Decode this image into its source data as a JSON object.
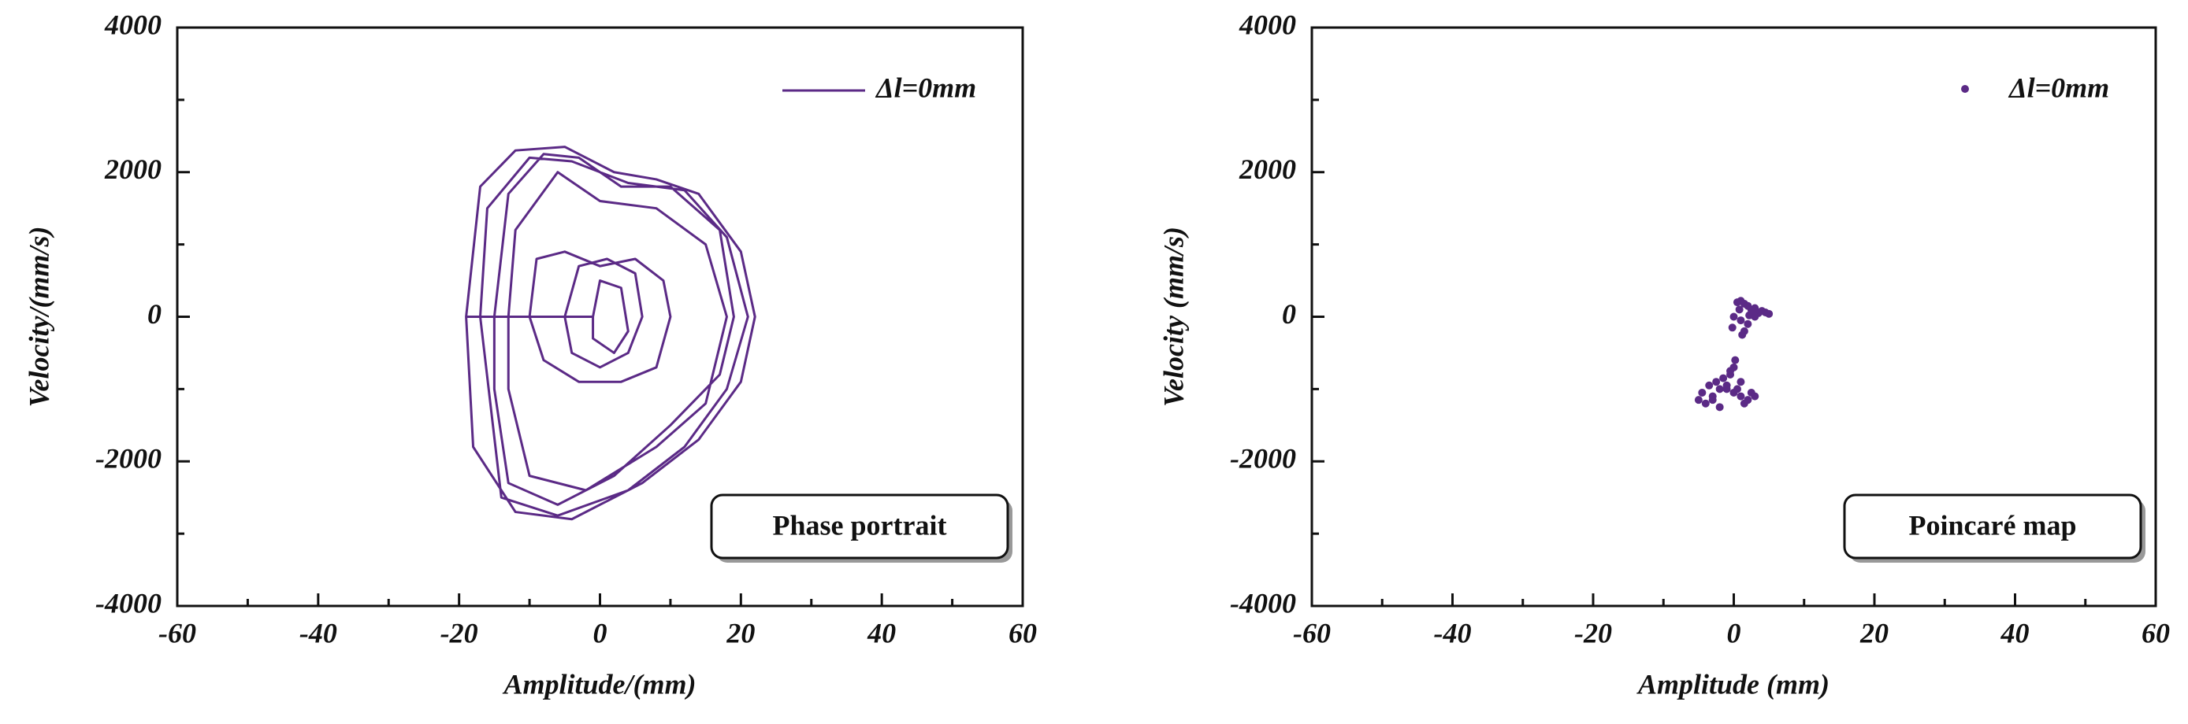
{
  "chart_data": [
    {
      "type": "line",
      "xlabel": "Amplitude/(mm)",
      "ylabel": "Velocity/(mm/s)",
      "annotation": "Phase portrait",
      "xlim": [
        -60,
        60
      ],
      "xticks": [
        -60,
        -40,
        -20,
        0,
        20,
        40,
        60
      ],
      "ylim": [
        -4000,
        4000
      ],
      "yticks": [
        -4000,
        -2000,
        0,
        2000,
        4000
      ],
      "legend": "upper right",
      "series": [
        {
          "name": "Δl=0mm",
          "color": "#5b2a86",
          "x": [
            -19,
            -17,
            -12,
            -5,
            2,
            8,
            14,
            20,
            22,
            20,
            14,
            6,
            -4,
            -12,
            -18,
            -19,
            -15,
            -13,
            -8,
            -3,
            3,
            10,
            17,
            19,
            17,
            10,
            2,
            -6,
            -13,
            -15,
            -15,
            -10,
            -9,
            -5,
            0,
            5,
            9,
            10,
            8,
            3,
            -3,
            -8,
            -10,
            -5,
            -3,
            1,
            5,
            6,
            4,
            0,
            -4,
            -5,
            -13,
            -12,
            -6,
            0,
            8,
            15,
            18,
            15,
            8,
            -2,
            -10,
            -13,
            -13,
            -1,
            0,
            3,
            4,
            2,
            -1,
            -1,
            -17,
            -16,
            -10,
            -4,
            4,
            12,
            18,
            21,
            18,
            12,
            4,
            -6,
            -14,
            -17
          ],
          "values": [
            0,
            1800,
            2300,
            2350,
            2000,
            1900,
            1700,
            900,
            0,
            -900,
            -1700,
            -2300,
            -2800,
            -2700,
            -1800,
            0,
            0,
            1700,
            2250,
            2200,
            1800,
            1800,
            1200,
            0,
            -800,
            -1500,
            -2200,
            -2600,
            -2300,
            -1000,
            0,
            0,
            800,
            900,
            700,
            800,
            500,
            0,
            -700,
            -900,
            -900,
            -600,
            0,
            0,
            700,
            800,
            600,
            0,
            -500,
            -700,
            -500,
            0,
            0,
            1200,
            2000,
            1600,
            1500,
            1000,
            0,
            -1200,
            -1800,
            -2400,
            -2200,
            -1000,
            0,
            0,
            500,
            400,
            -200,
            -500,
            -300,
            0,
            0,
            1500,
            2200,
            2150,
            1850,
            1750,
            1100,
            0,
            -1000,
            -1800,
            -2400,
            -2750,
            -2500,
            0
          ]
        }
      ]
    },
    {
      "type": "scatter",
      "xlabel": "Amplitude (mm)",
      "ylabel": "Velocity (mm/s)",
      "annotation": "Poincaré map",
      "xlim": [
        -60,
        60
      ],
      "xticks": [
        -60,
        -40,
        -20,
        0,
        20,
        40,
        60
      ],
      "ylim": [
        -4000,
        4000
      ],
      "yticks": [
        -4000,
        -2000,
        0,
        2000,
        4000
      ],
      "legend": "upper right",
      "series": [
        {
          "name": "Δl=0mm",
          "color": "#5b2a86",
          "x": [
            0.5,
            1,
            1.5,
            2,
            2.5,
            3,
            3.5,
            4,
            4.5,
            5,
            1,
            2,
            0,
            1.5,
            3,
            0.8,
            2.2,
            -0.2,
            1.2,
            2.8,
            -5,
            -4,
            -3,
            -2,
            -1,
            0,
            1,
            2,
            3,
            -4.5,
            -3.5,
            -2.5,
            -1.5,
            -0.5,
            0.5,
            1.5,
            2.5,
            -3,
            -1,
            0,
            -2,
            1,
            0.2,
            -0.5
          ],
          "values": [
            200,
            220,
            180,
            150,
            100,
            120,
            50,
            80,
            60,
            40,
            -50,
            -100,
            0,
            -200,
            0,
            100,
            20,
            -150,
            -250,
            90,
            -1150,
            -1200,
            -1100,
            -1000,
            -950,
            -1050,
            -1100,
            -1150,
            -1100,
            -1050,
            -950,
            -900,
            -850,
            -800,
            -1000,
            -1200,
            -1050,
            -1150,
            -1000,
            -700,
            -1250,
            -900,
            -600,
            -750
          ]
        }
      ]
    }
  ]
}
